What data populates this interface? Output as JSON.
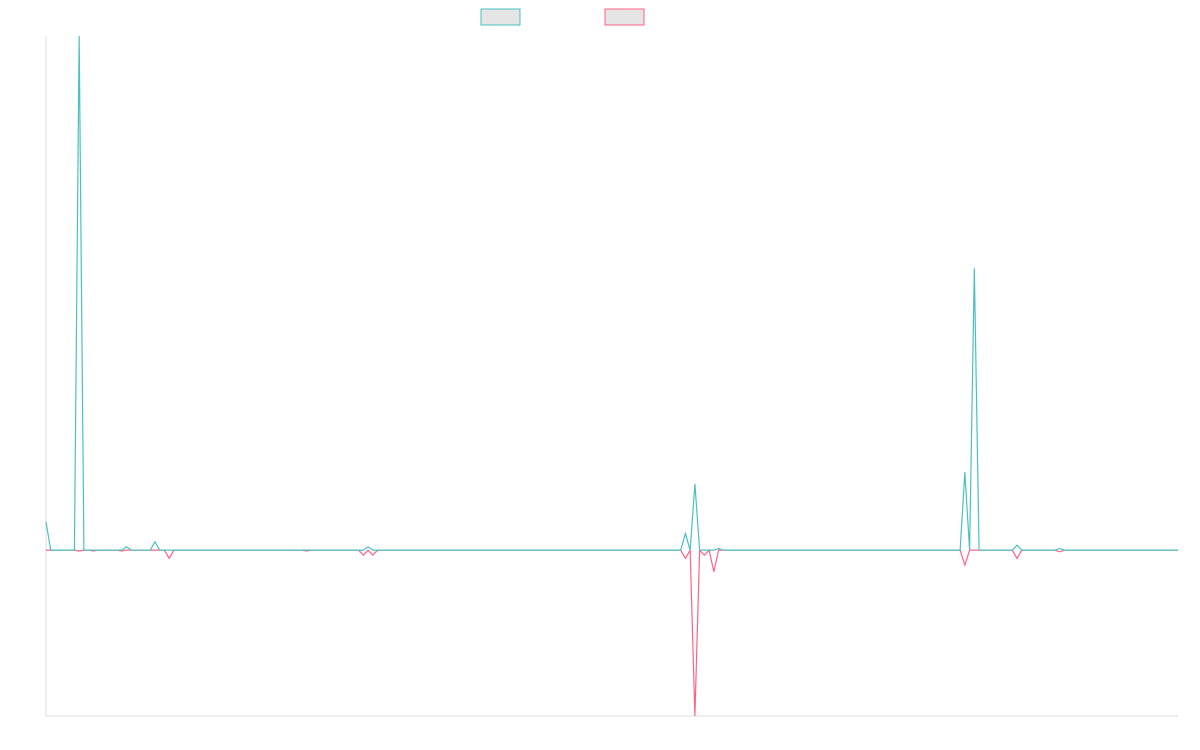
{
  "chart_data": {
    "type": "line",
    "title": "",
    "xlabel": "",
    "ylabel": "",
    "grid": false,
    "legend": "top-center",
    "ylim": [
      -1,
      3.1
    ],
    "xlim": [
      0,
      239
    ],
    "colors": {
      "series_a": "#4bc0c0",
      "series_b": "#ff6384",
      "legend_fill": "#e5e5e5",
      "axis": "#dddddd"
    },
    "series": [
      {
        "key": "a",
        "points": [
          [
            0,
            0.17
          ],
          [
            1,
            0
          ],
          [
            6,
            0
          ],
          [
            7,
            3.1
          ],
          [
            8,
            0
          ],
          [
            16,
            0
          ],
          [
            17,
            0.02
          ],
          [
            18,
            0
          ],
          [
            22,
            0
          ],
          [
            23,
            0.05
          ],
          [
            24,
            0
          ],
          [
            67,
            0
          ],
          [
            68,
            0.02
          ],
          [
            69,
            0
          ],
          [
            134,
            0
          ],
          [
            135,
            0.1
          ],
          [
            136,
            0
          ],
          [
            137,
            0.4
          ],
          [
            138,
            0
          ],
          [
            141,
            0
          ],
          [
            142,
            0.01
          ],
          [
            143,
            0
          ],
          [
            193,
            0
          ],
          [
            194,
            0.47
          ],
          [
            195,
            0
          ],
          [
            196,
            1.7
          ],
          [
            197,
            0
          ],
          [
            204,
            0
          ],
          [
            205,
            0.03
          ],
          [
            206,
            0
          ],
          [
            213,
            0
          ],
          [
            214,
            0.01
          ],
          [
            215,
            0
          ],
          [
            239,
            0
          ]
        ]
      },
      {
        "key": "b",
        "points": [
          [
            0,
            0
          ],
          [
            6,
            0
          ],
          [
            7,
            -0.005
          ],
          [
            8,
            0
          ],
          [
            9,
            0
          ],
          [
            10,
            -0.005
          ],
          [
            11,
            0
          ],
          [
            15,
            0
          ],
          [
            16,
            -0.005
          ],
          [
            17,
            0
          ],
          [
            25,
            0
          ],
          [
            26,
            -0.05
          ],
          [
            27,
            0
          ],
          [
            54,
            0
          ],
          [
            55,
            -0.005
          ],
          [
            56,
            0
          ],
          [
            66,
            0
          ],
          [
            67,
            -0.03
          ],
          [
            68,
            0
          ],
          [
            69,
            -0.03
          ],
          [
            70,
            0
          ],
          [
            134,
            0
          ],
          [
            135,
            -0.05
          ],
          [
            136,
            0
          ],
          [
            137,
            -1
          ],
          [
            138,
            0
          ],
          [
            139,
            -0.03
          ],
          [
            140,
            0
          ],
          [
            141,
            -0.13
          ],
          [
            142,
            0
          ],
          [
            193,
            0
          ],
          [
            194,
            -0.09
          ],
          [
            195,
            0
          ],
          [
            204,
            0
          ],
          [
            205,
            -0.05
          ],
          [
            206,
            0
          ],
          [
            213,
            0
          ],
          [
            214,
            -0.01
          ],
          [
            215,
            0
          ],
          [
            239,
            0
          ]
        ]
      }
    ]
  }
}
